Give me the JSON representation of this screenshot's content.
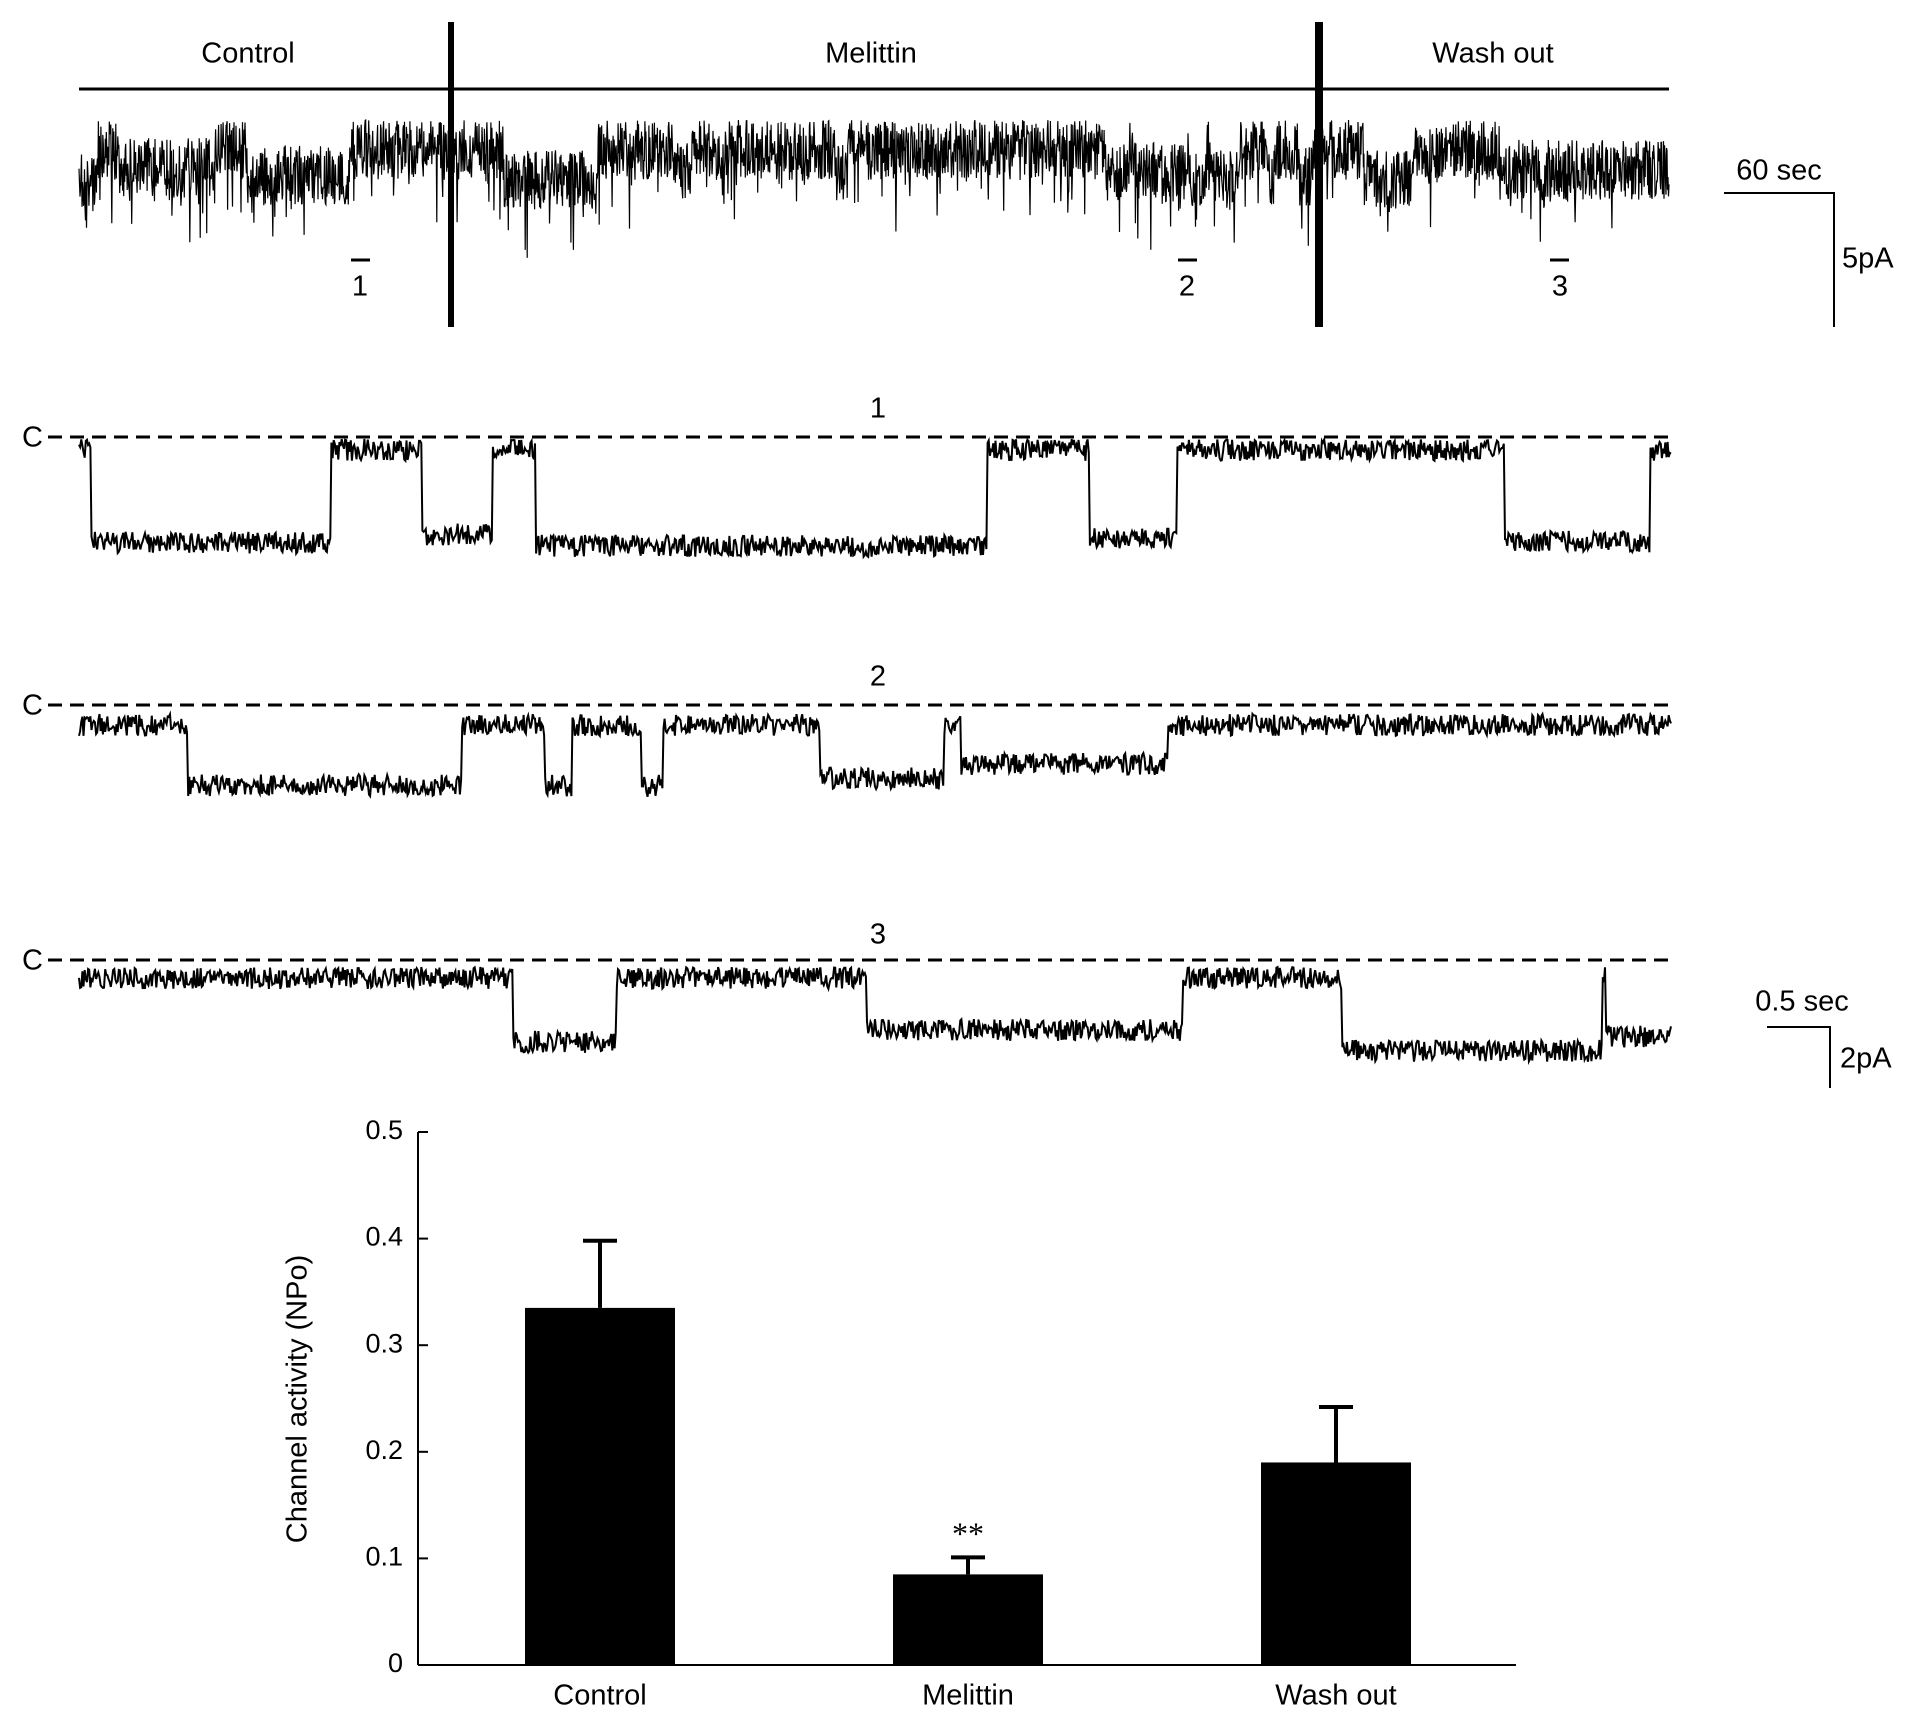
{
  "traces": {
    "overview": {
      "phases": [
        "Control",
        "Melittin",
        "Wash out"
      ],
      "markers": [
        "1",
        "2",
        "3"
      ],
      "scale_time": "60 sec",
      "scale_current": "5pA"
    },
    "expanded": {
      "closed_label": "C",
      "labels": [
        "1",
        "2",
        "3"
      ],
      "scale_time": "0.5 sec",
      "scale_current": "2pA"
    }
  },
  "chart_data": {
    "type": "bar",
    "ylabel": "Channel activity (NPo)",
    "categories": [
      "Control",
      "Melittin",
      "Wash out"
    ],
    "values": [
      0.335,
      0.085,
      0.19
    ],
    "errors": [
      0.063,
      0.016,
      0.052
    ],
    "color": "#000000",
    "ylim": [
      0,
      0.5
    ],
    "yticks": [
      0,
      0.1,
      0.2,
      0.3,
      0.4,
      0.5
    ],
    "annotations": [
      {
        "text": "**",
        "category": "Melittin"
      }
    ]
  }
}
